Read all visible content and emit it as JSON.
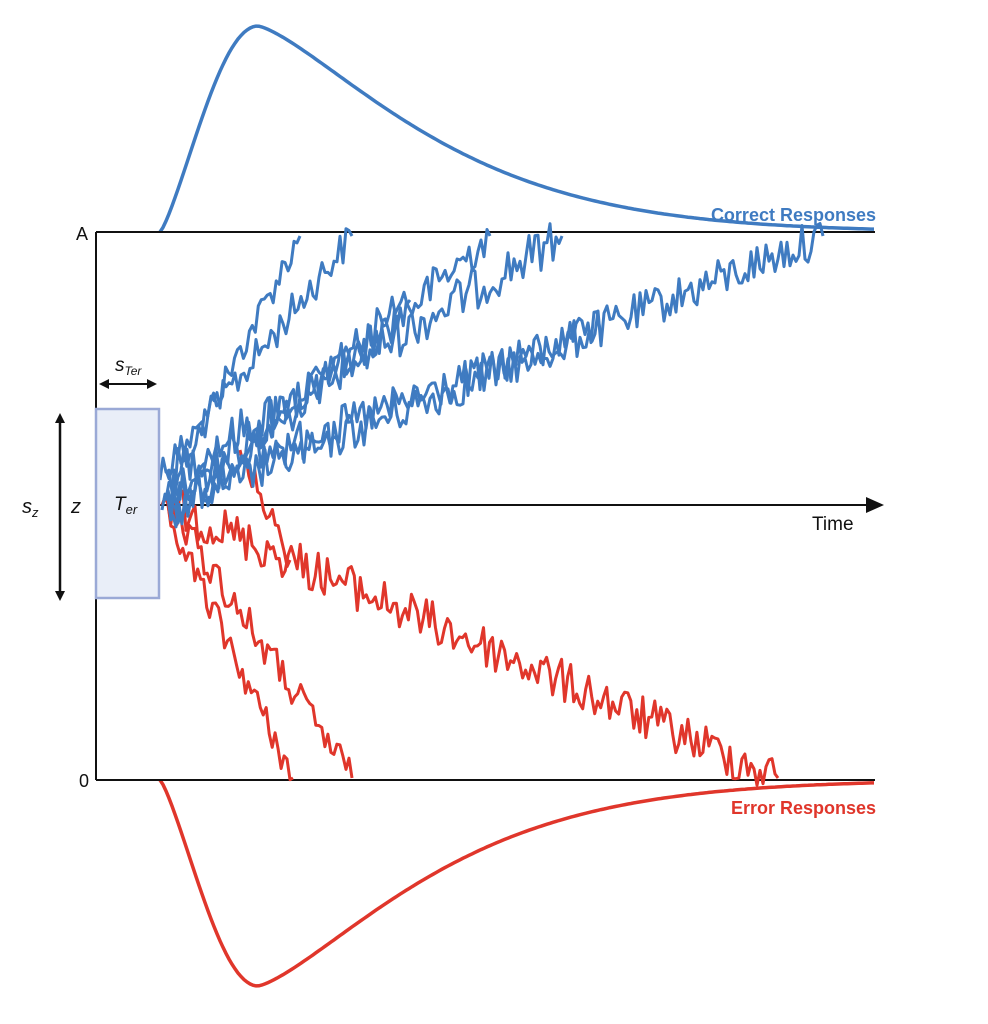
{
  "diagram": {
    "upper_boundary_label": "A",
    "lower_boundary_label": "0",
    "time_axis_label": "Time",
    "correct_label": "Correct Responses",
    "error_label": "Error Responses",
    "starting_point_label": "z",
    "starting_variability_label": "s",
    "starting_variability_subscript": "z",
    "nondecision_label": "T",
    "nondecision_subscript": "er",
    "nondecision_variability_label": "s",
    "nondecision_variability_subscript": "Ter"
  },
  "colors": {
    "correct": "#3f7bc1",
    "error": "#e0362b",
    "axis": "#111111",
    "ter_box_fill": "#e9eef8",
    "ter_box_stroke": "#9aa9d6"
  },
  "icons": {
    "s_ter_arrow": "double-headed-horizontal-arrow",
    "s_z_arrow": "double-headed-vertical-arrow",
    "time_arrow": "right-arrowhead"
  }
}
